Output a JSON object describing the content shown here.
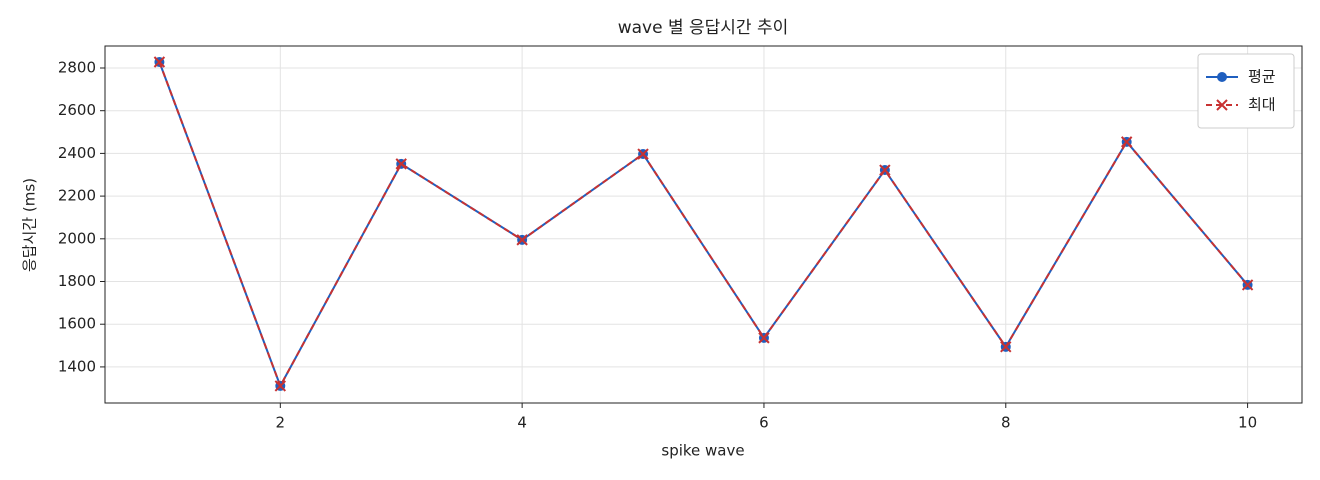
{
  "chart_data": {
    "type": "line",
    "title": "wave 별 응답시간 추이",
    "x_label": "spike wave",
    "y_label": "응답시간 (ms)",
    "x": [
      1,
      2,
      3,
      4,
      5,
      6,
      7,
      8,
      9,
      10
    ],
    "series": [
      {
        "name": "평균",
        "color": "#1f5fbf",
        "marker": "o",
        "linestyle": "solid",
        "values": [
          2828,
          1311,
          2351,
          1995,
          2397,
          1536,
          2322,
          1494,
          2454,
          1784
        ]
      },
      {
        "name": "최대",
        "color": "#c83232",
        "marker": "x",
        "linestyle": "dashed",
        "values": [
          2828,
          1311,
          2351,
          1995,
          2397,
          1536,
          2322,
          1494,
          2454,
          1784
        ]
      }
    ],
    "xlim": [
      0.55,
      10.45
    ],
    "ylim": [
      1231,
      2903
    ],
    "xticks": [
      2,
      4,
      6,
      8,
      10
    ],
    "yticks": [
      1400,
      1600,
      1800,
      2000,
      2200,
      2400,
      2600,
      2800
    ],
    "grid": true,
    "legend": "upper right"
  }
}
